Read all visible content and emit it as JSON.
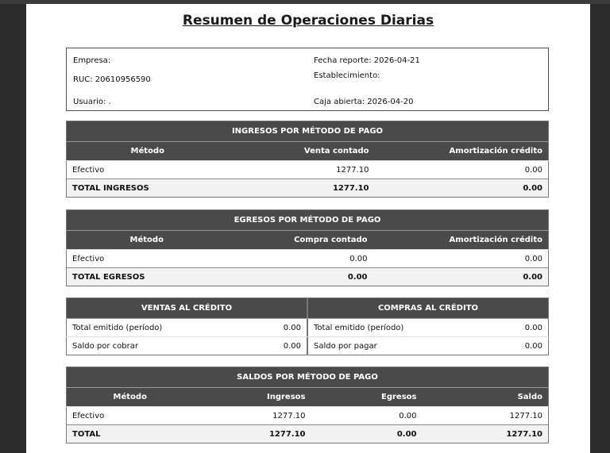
{
  "title": "Resumen de Operaciones Diarias",
  "info": {
    "empresa_label": "Empresa:",
    "ruc": "RUC: 20610956590",
    "usuario": "Usuario: .",
    "fecha_reporte": "Fecha reporte: 2026-04-21",
    "establecimiento": "Establecimiento:",
    "caja_abierta": "Caja abierta: 2026-04-20"
  },
  "ingresos": {
    "title": "INGRESOS POR MÉTODO DE PAGO",
    "headers": [
      "Método",
      "Venta contado",
      "Amortización crédito"
    ],
    "rows": [
      [
        "Efectivo",
        "1277.10",
        "0.00"
      ]
    ],
    "total": [
      "TOTAL INGRESOS",
      "1277.10",
      "0.00"
    ]
  },
  "egresos": {
    "title": "EGRESOS POR MÉTODO DE PAGO",
    "headers": [
      "Método",
      "Compra contado",
      "Amortización crédito"
    ],
    "rows": [
      [
        "Efectivo",
        "0.00",
        "0.00"
      ]
    ],
    "total": [
      "TOTAL EGRESOS",
      "0.00",
      "0.00"
    ]
  },
  "ventas_credito": {
    "title": "VENTAS AL CRÉDITO",
    "rows": [
      [
        "Total emitido (período)",
        "0.00"
      ],
      [
        "Saldo por cobrar",
        "0.00"
      ]
    ]
  },
  "compras_credito": {
    "title": "COMPRAS AL CRÉDITO",
    "rows": [
      [
        "Total emitido (período)",
        "0.00"
      ],
      [
        "Saldo por pagar",
        "0.00"
      ]
    ]
  },
  "saldos": {
    "title": "SALDOS POR MÉTODO DE PAGO",
    "headers": [
      "Método",
      "Ingresos",
      "Egresos",
      "Saldo"
    ],
    "rows": [
      [
        "Efectivo",
        "1277.10",
        "0.00",
        "1277.10"
      ]
    ],
    "total": [
      "TOTAL",
      "1277.10",
      "0.00",
      "1277.10"
    ]
  }
}
